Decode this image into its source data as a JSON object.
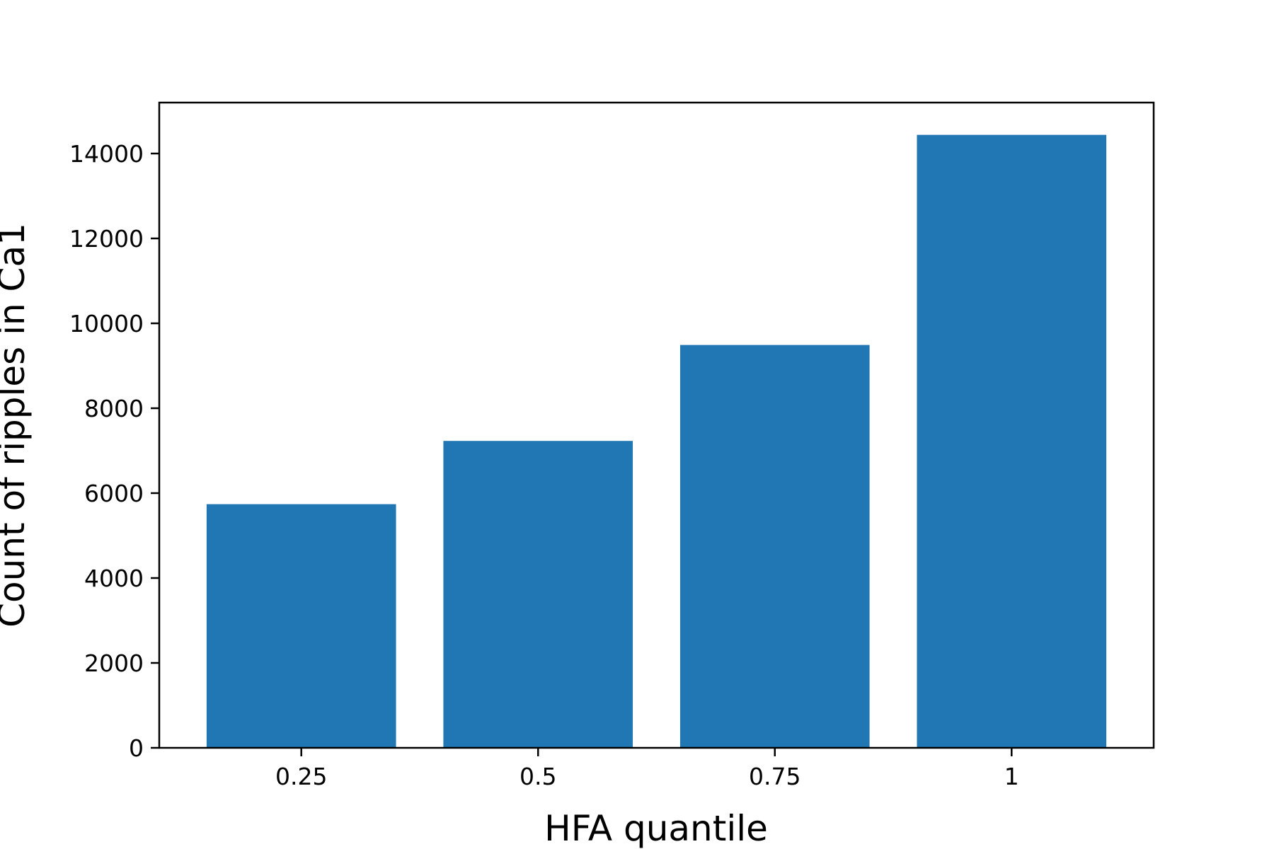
{
  "chart_data": {
    "type": "bar",
    "title": "",
    "xlabel": "HFA quantile",
    "ylabel": "Count of ripples in Ca1",
    "categories": [
      "0.25",
      "0.5",
      "0.75",
      "1"
    ],
    "values": [
      5740,
      7230,
      9490,
      14440
    ],
    "ylim": [
      0,
      15200
    ],
    "yticks": [
      0,
      2000,
      4000,
      6000,
      8000,
      10000,
      12000,
      14000
    ],
    "ytick_labels": [
      "0",
      "2000",
      "4000",
      "6000",
      "8000",
      "10000",
      "12000",
      "14000"
    ],
    "bar_color": "#2077b4",
    "grid": false,
    "legend": "none"
  }
}
